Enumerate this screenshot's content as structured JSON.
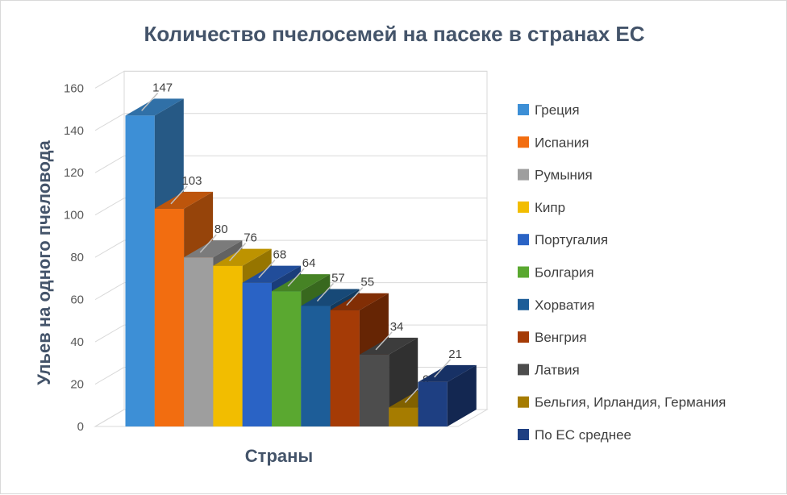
{
  "chart_data": {
    "type": "bar",
    "title": "Количество пчелосемей на пасеке в странах ЕС",
    "xlabel": "Страны",
    "ylabel": "Ульев на одного пчеловода",
    "ylim": [
      0,
      160
    ],
    "yticks": [
      0,
      20,
      40,
      60,
      80,
      100,
      120,
      140,
      160
    ],
    "grid": true,
    "legend_position": "right",
    "categories": [
      "Греция",
      "Испания",
      "Румыния",
      "Кипр",
      "Португалия",
      "Болгария",
      "Хорватия",
      "Венгрия",
      "Латвия",
      "Бельгия, Ирландия, Германия",
      "По ЕС среднее"
    ],
    "values": [
      147,
      103,
      80,
      76,
      68,
      64,
      57,
      55,
      34,
      9,
      21
    ],
    "colors": [
      "#3d8fd6",
      "#f26d10",
      "#9e9e9e",
      "#f2bd00",
      "#2a63c5",
      "#5aa830",
      "#1d5d98",
      "#a53b06",
      "#4d4d4d",
      "#a67c00",
      "#1e3f82"
    ]
  }
}
